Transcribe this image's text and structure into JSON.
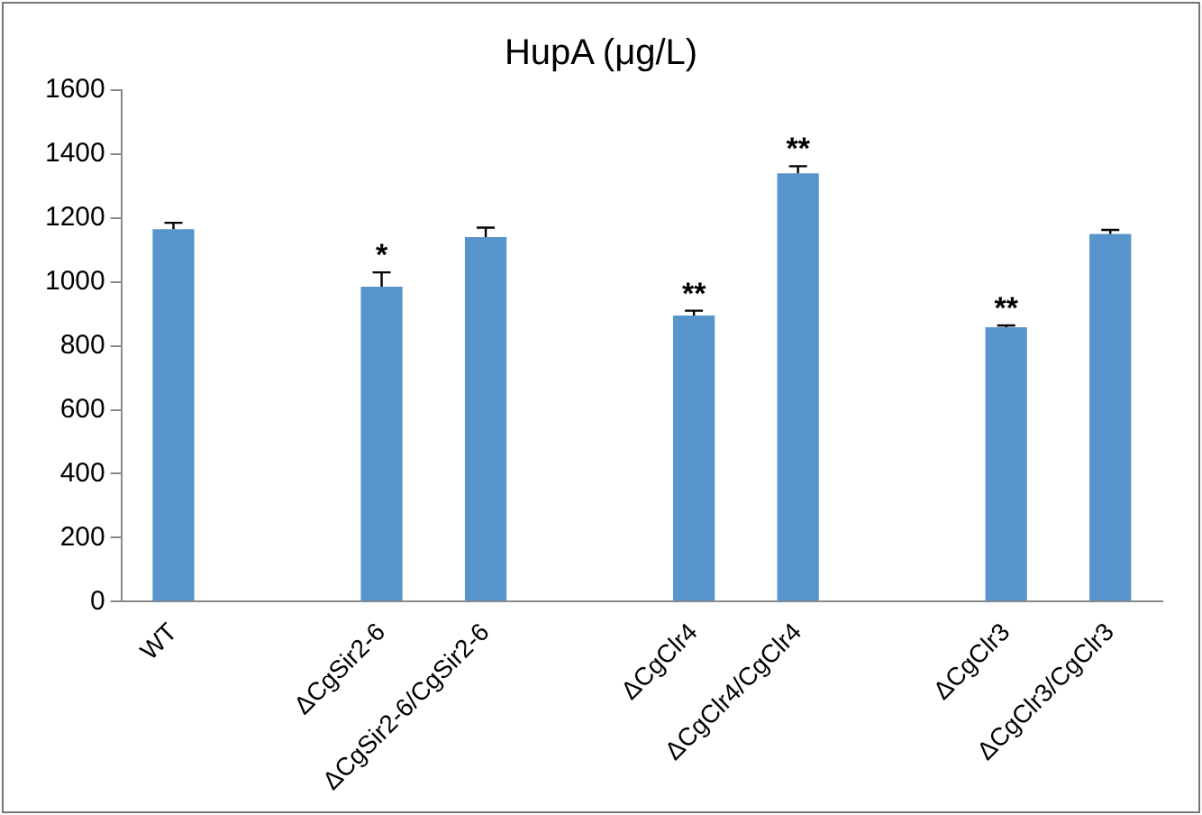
{
  "chart_data": {
    "type": "bar",
    "title": "HupA (μg/L)",
    "categories": [
      "WT",
      null,
      "ΔCgSir2-6",
      "ΔCgSir2-6/CgSir2-6",
      null,
      "ΔCgClr4",
      "ΔCgClr4/CgClr4",
      null,
      "ΔCgClr3",
      "ΔCgClr3/CgClr3"
    ],
    "values": [
      1165,
      null,
      985,
      1140,
      null,
      895,
      1340,
      null,
      858,
      1150
    ],
    "errors": [
      [
        1165,
        1185
      ],
      null,
      [
        985,
        1030
      ],
      [
        1140,
        1170
      ],
      null,
      [
        895,
        910
      ],
      [
        1340,
        1362
      ],
      null,
      [
        858,
        864
      ],
      [
        1150,
        1163
      ]
    ],
    "color": "#5794cb",
    "ylim": [
      0,
      1600
    ],
    "yticks": [
      0,
      200,
      400,
      600,
      800,
      1000,
      1200,
      1400,
      1600
    ],
    "grid": false,
    "legend": false,
    "annotations": [
      {
        "text": "*",
        "x": "ΔCgSir2-6",
        "y": 1030
      },
      {
        "text": "**",
        "x": "ΔCgClr4",
        "y": 910
      },
      {
        "text": "**",
        "x": "ΔCgClr4/CgClr4",
        "y": 1362
      },
      {
        "text": "**",
        "x": "ΔCgClr3",
        "y": 864
      }
    ]
  }
}
